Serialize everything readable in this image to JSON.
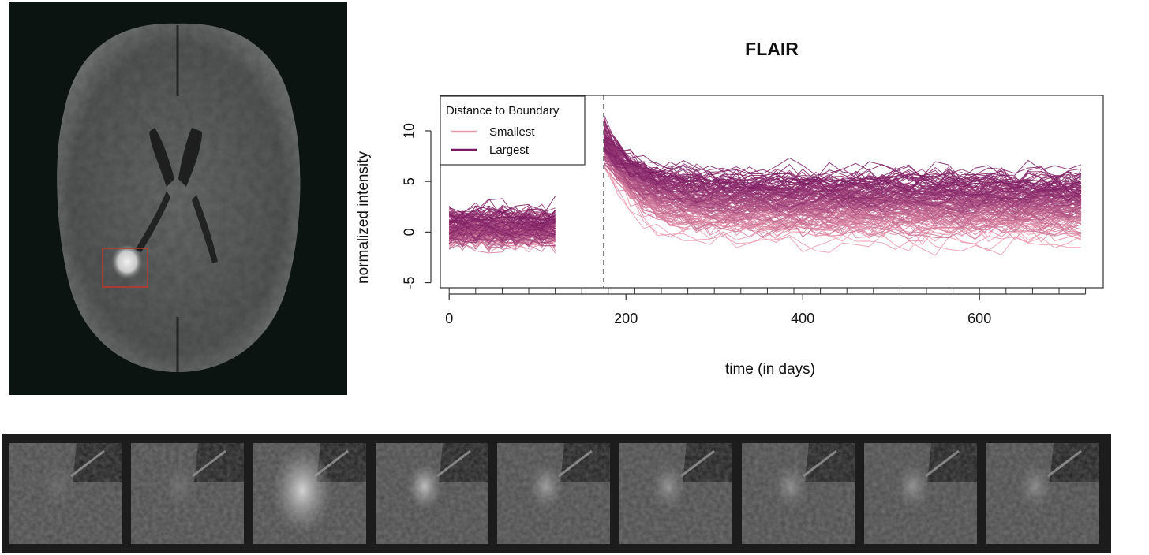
{
  "chart_data": {
    "type": "line",
    "title": "FLAIR",
    "xlabel": "time (in days)",
    "ylabel": "normalized intensity",
    "xlim": [
      -10,
      740
    ],
    "ylim": [
      -5.5,
      13.5
    ],
    "xticks": [
      0,
      200,
      400,
      600
    ],
    "yticks": [
      -5,
      0,
      5,
      10
    ],
    "vertical_reference_line": {
      "x": 175,
      "style": "dashed",
      "color": "#333333"
    },
    "segments": [
      {
        "x_start": 0,
        "x_end": 120,
        "mean_range": [
          -0.5,
          1.5
        ],
        "spread": 2.2
      },
      {
        "x_start": 175,
        "x_end": 720,
        "initial_peak": 10,
        "decay_to": [
          0.0,
          5.5
        ],
        "spread": 2.5
      }
    ],
    "legend": {
      "title": "Distance to Boundary",
      "position": "top-left",
      "entries": [
        {
          "label": "Smallest",
          "color": "#ee9aae"
        },
        {
          "label": "Largest",
          "color": "#7a1a62"
        }
      ]
    },
    "grid": false,
    "approx_number_of_series": 150
  },
  "colors": {
    "smallest": "#ee9aae",
    "largest": "#7a1a62",
    "mri_background": "#0c1411",
    "roi_box": "#c0392b"
  },
  "mri_image": {
    "roi_box": "red rectangle"
  },
  "thumbnails": {
    "count": 9,
    "brightness": [
      0.12,
      0.16,
      0.9,
      0.75,
      0.5,
      0.42,
      0.38,
      0.4,
      0.35
    ]
  }
}
